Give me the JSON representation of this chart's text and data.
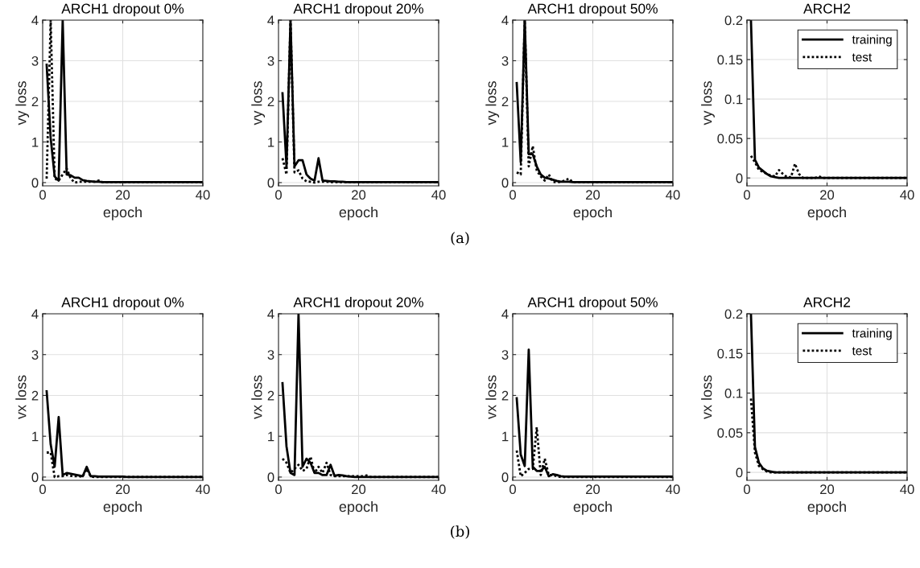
{
  "chart_data": [
    {
      "type": "line",
      "title": "ARCH1 dropout 0%",
      "xlabel": "epoch",
      "ylabel": "vy loss",
      "annotations": [
        "(a)"
      ],
      "x": [
        1,
        2,
        3,
        4,
        5,
        6,
        7,
        8,
        9,
        10,
        11,
        12,
        13,
        14,
        15,
        16,
        17,
        18,
        19,
        20,
        21,
        22,
        23,
        24,
        25,
        26,
        27,
        28,
        29,
        30,
        31,
        32,
        33,
        34,
        35,
        36,
        37,
        38,
        39,
        40
      ],
      "xlim": [
        0,
        40
      ],
      "xticks": [
        0,
        20,
        40
      ],
      "ylim": [
        -0.08,
        4
      ],
      "yticks": [
        0,
        1,
        2,
        3,
        4
      ],
      "grid": true,
      "legend": false,
      "series": [
        {
          "color": "#000000",
          "line_style": "solid",
          "values": [
            2.9,
            1.1,
            0.15,
            0.05,
            4,
            0.2,
            0.18,
            0.12,
            0.12,
            0.06,
            0.04,
            0.03,
            0.02,
            0.02,
            0.01,
            0.01,
            0.01,
            0.01,
            0.01,
            0.01,
            0.01,
            0.01,
            0.01,
            0.01,
            0.01,
            0.01,
            0.01,
            0.01,
            0.01,
            0.01,
            0.01,
            0.01,
            0.01,
            0.01,
            0.01,
            0.01,
            0.01,
            0.01,
            0.01,
            0.01
          ]
        },
        {
          "color": "#000000",
          "line_style": "dotted",
          "values": [
            0.1,
            4,
            0.1,
            0.05,
            0.2,
            0.35,
            0.1,
            0.0,
            0.02,
            0.02,
            0.02,
            0.02,
            0.02,
            0.05,
            0.01,
            0.01,
            0.01,
            0.01,
            0.01,
            0.01,
            0.01,
            0.01,
            0.01,
            0.01,
            0.01,
            0.01,
            0.01,
            0.01,
            0.01,
            0.01,
            0.01,
            0.01,
            0.01,
            0.01,
            0.01,
            0.01,
            0.01,
            0.01,
            0.01,
            0.01
          ]
        }
      ]
    },
    {
      "type": "line",
      "title": "ARCH1 dropout 20%",
      "xlabel": "epoch",
      "ylabel": "vy loss",
      "x": [
        1,
        2,
        3,
        4,
        5,
        6,
        7,
        8,
        9,
        10,
        11,
        12,
        13,
        14,
        15,
        16,
        17,
        18,
        19,
        20,
        21,
        22,
        23,
        24,
        25,
        26,
        27,
        28,
        29,
        30,
        31,
        32,
        33,
        34,
        35,
        36,
        37,
        38,
        39,
        40
      ],
      "xlim": [
        0,
        40
      ],
      "xticks": [
        0,
        20,
        40
      ],
      "ylim": [
        -0.08,
        4
      ],
      "yticks": [
        0,
        1,
        2,
        3,
        4
      ],
      "grid": true,
      "legend": false,
      "series": [
        {
          "color": "#000000",
          "line_style": "solid",
          "values": [
            2.2,
            0.4,
            4,
            0.4,
            0.55,
            0.55,
            0.2,
            0.1,
            0.05,
            0.6,
            0.05,
            0.04,
            0.03,
            0.03,
            0.02,
            0.02,
            0.01,
            0.01,
            0.01,
            0.01,
            0.01,
            0.01,
            0.01,
            0.01,
            0.01,
            0.01,
            0.01,
            0.01,
            0.01,
            0.01,
            0.01,
            0.01,
            0.01,
            0.01,
            0.01,
            0.01,
            0.01,
            0.01,
            0.01,
            0.01
          ]
        },
        {
          "color": "#000000",
          "line_style": "dotted",
          "values": [
            0.6,
            0.2,
            4,
            0.25,
            0.3,
            0.1,
            0.03,
            0.02,
            0.0,
            0.02,
            0.02,
            0.02,
            0.01,
            0.01,
            0.01,
            0.01,
            0.01,
            0.01,
            0.01,
            0.01,
            0.01,
            0.01,
            0.01,
            0.01,
            0.01,
            0.01,
            0.01,
            0.01,
            0.01,
            0.01,
            0.01,
            0.01,
            0.01,
            0.01,
            0.01,
            0.01,
            0.01,
            0.01,
            0.01,
            0.01
          ]
        }
      ]
    },
    {
      "type": "line",
      "title": "ARCH1 dropout 50%",
      "xlabel": "epoch",
      "ylabel": "vy loss",
      "x": [
        1,
        2,
        3,
        4,
        5,
        6,
        7,
        8,
        9,
        10,
        11,
        12,
        13,
        14,
        15,
        16,
        17,
        18,
        19,
        20,
        21,
        22,
        23,
        24,
        25,
        26,
        27,
        28,
        29,
        30,
        31,
        32,
        33,
        34,
        35,
        36,
        37,
        38,
        39,
        40
      ],
      "xlim": [
        0,
        40
      ],
      "xticks": [
        0,
        20,
        40
      ],
      "ylim": [
        -0.08,
        4
      ],
      "yticks": [
        0,
        1,
        2,
        3,
        4
      ],
      "grid": true,
      "legend": false,
      "series": [
        {
          "color": "#000000",
          "line_style": "solid",
          "values": [
            2.45,
            0.5,
            4,
            0.7,
            0.7,
            0.4,
            0.2,
            0.12,
            0.1,
            0.07,
            0.04,
            0.02,
            0.02,
            0.02,
            0.01,
            0.01,
            0.01,
            0.01,
            0.01,
            0.01,
            0.01,
            0.01,
            0.01,
            0.01,
            0.01,
            0.01,
            0.01,
            0.01,
            0.01,
            0.01,
            0.01,
            0.01,
            0.01,
            0.01,
            0.01,
            0.01,
            0.01,
            0.01,
            0.01,
            0.01
          ]
        },
        {
          "color": "#000000",
          "line_style": "dotted",
          "values": [
            0.25,
            0.2,
            4,
            0.4,
            0.9,
            0.3,
            0.15,
            0.05,
            0.2,
            0.02,
            0.01,
            0.02,
            0.05,
            0.1,
            0.01,
            0.01,
            0.01,
            0.01,
            0.01,
            0.01,
            0.01,
            0.01,
            0.01,
            0.01,
            0.01,
            0.01,
            0.01,
            0.01,
            0.01,
            0.01,
            0.01,
            0.01,
            0.01,
            0.01,
            0.01,
            0.01,
            0.01,
            0.01,
            0.01,
            0.01
          ]
        }
      ]
    },
    {
      "type": "line",
      "title": "ARCH2",
      "xlabel": "epoch",
      "ylabel": "vy loss",
      "x": [
        1,
        2,
        3,
        4,
        5,
        6,
        7,
        8,
        9,
        10,
        11,
        12,
        13,
        14,
        15,
        16,
        17,
        18,
        19,
        20,
        21,
        22,
        23,
        24,
        25,
        26,
        27,
        28,
        29,
        30,
        31,
        32,
        33,
        34,
        35,
        36,
        37,
        38,
        39,
        40
      ],
      "xlim": [
        0,
        40
      ],
      "xticks": [
        0,
        20,
        40
      ],
      "ylim": [
        -0.01,
        0.2
      ],
      "yticks": [
        0,
        0.05,
        0.1,
        0.15,
        0.2
      ],
      "grid": true,
      "legend": "top right",
      "series": [
        {
          "name": "training",
          "color": "#000000",
          "line_style": "solid",
          "values": [
            0.2,
            0.023,
            0.013,
            0.009,
            0.005,
            0.002,
            0.001,
            0,
            0,
            0,
            0,
            0,
            0,
            0,
            0,
            0,
            0,
            0,
            0,
            0,
            0,
            0,
            0,
            0,
            0,
            0,
            0,
            0,
            0,
            0,
            0,
            0,
            0,
            0,
            0,
            0,
            0,
            0,
            0,
            0
          ]
        },
        {
          "name": "test",
          "color": "#000000",
          "line_style": "dotted",
          "values": [
            0.028,
            0.02,
            0.01,
            0.008,
            0.005,
            0.003,
            0.002,
            0.01,
            0.005,
            0.001,
            0.001,
            0.018,
            0.005,
            0,
            0,
            0,
            0,
            0.002,
            0,
            0,
            0,
            0,
            0,
            0,
            0,
            0,
            0,
            0,
            0,
            0,
            0,
            0,
            0,
            0,
            0,
            0,
            0,
            0,
            0,
            0
          ]
        }
      ]
    },
    {
      "type": "line",
      "title": "ARCH1 dropout 0%",
      "xlabel": "epoch",
      "ylabel": "vx loss",
      "annotations": [
        "(b)"
      ],
      "x": [
        1,
        2,
        3,
        4,
        5,
        6,
        7,
        8,
        9,
        10,
        11,
        12,
        13,
        14,
        15,
        16,
        17,
        18,
        19,
        20,
        21,
        22,
        23,
        24,
        25,
        26,
        27,
        28,
        29,
        30,
        31,
        32,
        33,
        34,
        35,
        36,
        37,
        38,
        39,
        40
      ],
      "xlim": [
        0,
        40
      ],
      "xticks": [
        0,
        20,
        40
      ],
      "ylim": [
        -0.08,
        4
      ],
      "yticks": [
        0,
        1,
        2,
        3,
        4
      ],
      "grid": true,
      "legend": false,
      "series": [
        {
          "color": "#000000",
          "line_style": "solid",
          "values": [
            2.1,
            0.8,
            0.25,
            1.47,
            0.05,
            0.1,
            0.08,
            0.06,
            0.04,
            0.02,
            0.25,
            0.02,
            0.02,
            0.01,
            0.01,
            0.01,
            0.01,
            0.01,
            0.01,
            0.01,
            0,
            0,
            0,
            0,
            0,
            0,
            0,
            0,
            0,
            0,
            0,
            0,
            0,
            0,
            0,
            0,
            0,
            0,
            0,
            0
          ]
        },
        {
          "color": "#000000",
          "line_style": "dotted",
          "values": [
            0.6,
            0.6,
            0.0,
            0.02,
            0.02,
            0.05,
            0.03,
            0.02,
            0.02,
            0.01,
            0.2,
            0.01,
            0,
            0,
            0,
            0,
            0,
            0,
            0,
            0,
            0,
            0,
            0,
            0,
            0,
            0,
            0,
            0,
            0,
            0,
            0,
            0,
            0,
            0,
            0,
            0,
            0,
            0,
            0,
            0
          ]
        }
      ]
    },
    {
      "type": "line",
      "title": "ARCH1 dropout 20%",
      "xlabel": "epoch",
      "ylabel": "vx loss",
      "x": [
        1,
        2,
        3,
        4,
        5,
        6,
        7,
        8,
        9,
        10,
        11,
        12,
        13,
        14,
        15,
        16,
        17,
        18,
        19,
        20,
        21,
        22,
        23,
        24,
        25,
        26,
        27,
        28,
        29,
        30,
        31,
        32,
        33,
        34,
        35,
        36,
        37,
        38,
        39,
        40
      ],
      "xlim": [
        0,
        40
      ],
      "xticks": [
        0,
        20,
        40
      ],
      "ylim": [
        -0.08,
        4
      ],
      "yticks": [
        0,
        1,
        2,
        3,
        4
      ],
      "grid": true,
      "legend": false,
      "series": [
        {
          "color": "#000000",
          "line_style": "solid",
          "values": [
            2.3,
            0.75,
            0.1,
            0.05,
            4,
            0.25,
            0.45,
            0.35,
            0.1,
            0.1,
            0.05,
            0.05,
            0.3,
            0.03,
            0.05,
            0.04,
            0.02,
            0.01,
            0,
            0,
            0,
            0,
            0,
            0,
            0,
            0,
            0,
            0,
            0,
            0,
            0,
            0,
            0,
            0,
            0,
            0,
            0,
            0,
            0,
            0
          ]
        },
        {
          "color": "#000000",
          "line_style": "dotted",
          "values": [
            0.45,
            0.35,
            0.1,
            0.2,
            0.3,
            0.15,
            0.2,
            0.5,
            0.1,
            0.25,
            0.1,
            0.35,
            0.05,
            0.02,
            0.02,
            0.02,
            0.02,
            0.02,
            0.02,
            0.02,
            0.02,
            0.04,
            0,
            0,
            0,
            0,
            0,
            0,
            0,
            0,
            0,
            0,
            0,
            0,
            0,
            0,
            0,
            0,
            0,
            0
          ]
        }
      ]
    },
    {
      "type": "line",
      "title": "ARCH1 dropout 50%",
      "xlabel": "epoch",
      "ylabel": "vx loss",
      "x": [
        1,
        2,
        3,
        4,
        5,
        6,
        7,
        8,
        9,
        10,
        11,
        12,
        13,
        14,
        15,
        16,
        17,
        18,
        19,
        20,
        21,
        22,
        23,
        24,
        25,
        26,
        27,
        28,
        29,
        30,
        31,
        32,
        33,
        34,
        35,
        36,
        37,
        38,
        39,
        40
      ],
      "xlim": [
        0,
        40
      ],
      "xticks": [
        0,
        20,
        40
      ],
      "ylim": [
        -0.08,
        4
      ],
      "yticks": [
        0,
        1,
        2,
        3,
        4
      ],
      "grid": true,
      "legend": false,
      "series": [
        {
          "color": "#000000",
          "line_style": "solid",
          "values": [
            1.93,
            0.55,
            0.27,
            3.12,
            0.25,
            0.15,
            0.15,
            0.25,
            0.02,
            0.07,
            0.05,
            0.02,
            0.01,
            0.01,
            0.01,
            0.01,
            0.01,
            0.01,
            0.01,
            0.01,
            0.01,
            0.01,
            0.01,
            0.01,
            0.01,
            0.01,
            0.01,
            0.01,
            0.01,
            0.01,
            0.01,
            0.01,
            0.01,
            0.01,
            0.01,
            0.01,
            0.01,
            0.01,
            0.01,
            0.01
          ]
        },
        {
          "color": "#000000",
          "line_style": "dotted",
          "values": [
            0.65,
            0.02,
            0.1,
            0.2,
            0.2,
            1.22,
            0.05,
            0.45,
            0.05,
            0.05,
            0.02,
            0,
            0,
            0,
            0,
            0,
            0,
            0,
            0,
            0,
            0,
            0,
            0,
            0,
            0,
            0,
            0,
            0,
            0,
            0,
            0,
            0,
            0,
            0,
            0,
            0,
            0,
            0,
            0,
            0
          ]
        }
      ]
    },
    {
      "type": "line",
      "title": "ARCH2",
      "xlabel": "epoch",
      "ylabel": "vx loss",
      "x": [
        1,
        2,
        3,
        4,
        5,
        6,
        7,
        8,
        9,
        10,
        11,
        12,
        13,
        14,
        15,
        16,
        17,
        18,
        19,
        20,
        21,
        22,
        23,
        24,
        25,
        26,
        27,
        28,
        29,
        30,
        31,
        32,
        33,
        34,
        35,
        36,
        37,
        38,
        39,
        40
      ],
      "xlim": [
        0,
        40
      ],
      "xticks": [
        0,
        20,
        40
      ],
      "ylim": [
        -0.01,
        0.2
      ],
      "yticks": [
        0,
        0.05,
        0.1,
        0.15,
        0.2
      ],
      "grid": true,
      "legend": "top right",
      "series": [
        {
          "name": "training",
          "color": "#000000",
          "line_style": "solid",
          "values": [
            0.2,
            0.032,
            0.012,
            0.005,
            0.002,
            0.001,
            0,
            0,
            0,
            0,
            0,
            0,
            0,
            0,
            0,
            0,
            0,
            0,
            0,
            0,
            0,
            0,
            0,
            0,
            0,
            0,
            0,
            0,
            0,
            0,
            0,
            0,
            0,
            0,
            0,
            0,
            0,
            0,
            0,
            0
          ]
        },
        {
          "name": "test",
          "color": "#000000",
          "line_style": "dotted",
          "values": [
            0.093,
            0.025,
            0.008,
            0.004,
            0.001,
            0,
            0,
            0,
            0,
            0,
            0,
            0,
            0,
            0,
            0,
            0,
            0,
            0,
            0,
            0,
            0,
            0,
            0,
            0,
            0,
            0,
            0,
            0,
            0,
            0,
            0,
            0,
            0,
            0,
            0,
            0,
            0,
            0,
            0,
            0
          ]
        }
      ]
    }
  ]
}
